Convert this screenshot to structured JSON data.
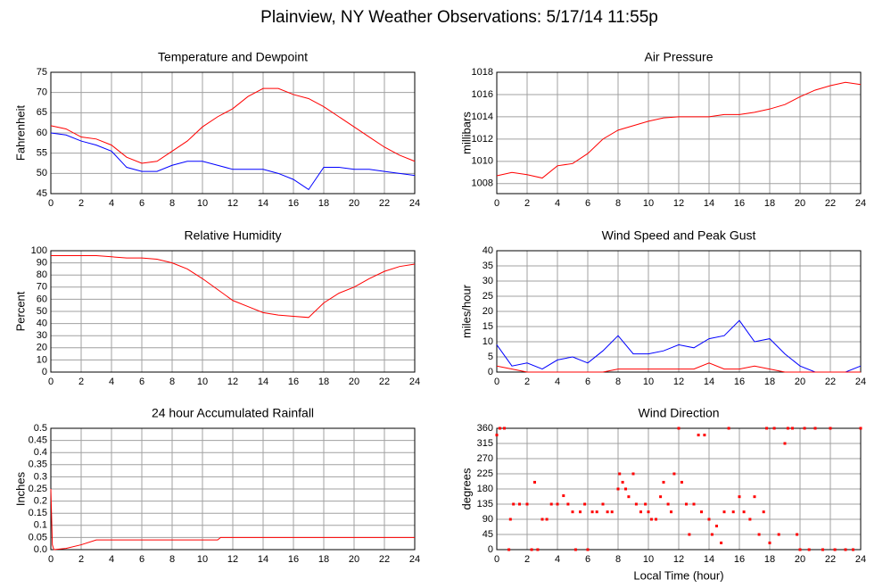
{
  "title": "Plainview, NY Weather Observations: 5/17/14 11:55p",
  "chart_data": [
    {
      "type": "line",
      "title": "Temperature and Dewpoint",
      "ylabel": "Fahrenheit",
      "x": [
        0,
        1,
        2,
        3,
        4,
        5,
        6,
        7,
        8,
        9,
        10,
        11,
        12,
        13,
        14,
        15,
        16,
        17,
        18,
        19,
        20,
        21,
        22,
        23,
        24
      ],
      "series": [
        {
          "color": "#ff0000",
          "values": [
            61.8,
            61,
            59,
            58.5,
            57,
            54,
            52.5,
            53,
            55.5,
            58,
            61.5,
            64,
            66,
            69,
            71,
            71,
            69.5,
            68.5,
            66.5,
            64,
            61.5,
            59,
            56.5,
            54.5,
            53
          ]
        },
        {
          "color": "#0000ff",
          "values": [
            60,
            59.5,
            58,
            57,
            55.5,
            51.5,
            50.5,
            50.5,
            52,
            53,
            53,
            52,
            51,
            51,
            51,
            50,
            48.5,
            46,
            51.5,
            51.5,
            51,
            51,
            50.5,
            50,
            49.5
          ]
        }
      ],
      "xlim": [
        0,
        24
      ],
      "xticks": [
        0,
        2,
        4,
        6,
        8,
        10,
        12,
        14,
        16,
        18,
        20,
        22,
        24
      ],
      "ylim": [
        45,
        75
      ],
      "yticks": [
        45,
        50,
        55,
        60,
        65,
        70,
        75
      ],
      "grid": true
    },
    {
      "type": "line",
      "title": "Air Pressure",
      "ylabel": "millibars",
      "x": [
        0,
        1,
        2,
        3,
        4,
        5,
        6,
        7,
        8,
        9,
        10,
        11,
        12,
        13,
        14,
        15,
        16,
        17,
        18,
        19,
        20,
        21,
        22,
        23,
        24
      ],
      "series": [
        {
          "color": "#ff0000",
          "values": [
            1008.7,
            1009,
            1008.8,
            1008.5,
            1009.6,
            1009.8,
            1010.7,
            1012,
            1012.8,
            1013.2,
            1013.6,
            1013.9,
            1014,
            1014,
            1014,
            1014.2,
            1014.2,
            1014.4,
            1014.7,
            1015.1,
            1015.8,
            1016.4,
            1016.8,
            1017.1,
            1016.9
          ]
        }
      ],
      "xlim": [
        0,
        24
      ],
      "xticks": [
        0,
        2,
        4,
        6,
        8,
        10,
        12,
        14,
        16,
        18,
        20,
        22,
        24
      ],
      "ylim": [
        1007.1,
        1018
      ],
      "yticks": [
        1008,
        1010,
        1012,
        1014,
        1016,
        1018
      ],
      "grid": true
    },
    {
      "type": "line",
      "title": "Relative Humidity",
      "ylabel": "Percent",
      "x": [
        0,
        1,
        2,
        3,
        4,
        5,
        6,
        7,
        8,
        9,
        10,
        11,
        12,
        13,
        14,
        15,
        16,
        17,
        18,
        19,
        20,
        21,
        22,
        23,
        24
      ],
      "series": [
        {
          "color": "#ff0000",
          "values": [
            96,
            96,
            96,
            96,
            95,
            94,
            94,
            93,
            90,
            85,
            77,
            68,
            59,
            54,
            49,
            47,
            46,
            45,
            57,
            65,
            70,
            77,
            83,
            87,
            89
          ]
        }
      ],
      "xlim": [
        0,
        24
      ],
      "xticks": [
        0,
        2,
        4,
        6,
        8,
        10,
        12,
        14,
        16,
        18,
        20,
        22,
        24
      ],
      "ylim": [
        0,
        100
      ],
      "yticks": [
        0,
        10,
        20,
        30,
        40,
        50,
        60,
        70,
        80,
        90,
        100
      ],
      "grid": true
    },
    {
      "type": "line",
      "title": "Wind Speed and Peak Gust",
      "ylabel": "miles/hour",
      "x": [
        0,
        1,
        2,
        3,
        4,
        5,
        6,
        7,
        8,
        9,
        10,
        11,
        12,
        13,
        14,
        15,
        16,
        17,
        18,
        19,
        20,
        21,
        22,
        23,
        24
      ],
      "series": [
        {
          "color": "#0000ff",
          "values": [
            9,
            2,
            3,
            1,
            4,
            5,
            3,
            7,
            12,
            6,
            6,
            7,
            9,
            8,
            11,
            12,
            17,
            10,
            11,
            6,
            2,
            0,
            0,
            0,
            2
          ]
        },
        {
          "color": "#ff0000",
          "values": [
            2,
            1,
            0,
            0,
            0,
            0,
            0,
            0,
            1,
            1,
            1,
            1,
            1,
            1,
            3,
            1,
            1,
            2,
            1,
            0,
            0,
            0,
            0,
            0,
            0
          ]
        }
      ],
      "xlim": [
        0,
        24
      ],
      "xticks": [
        0,
        2,
        4,
        6,
        8,
        10,
        12,
        14,
        16,
        18,
        20,
        22,
        24
      ],
      "ylim": [
        0,
        40
      ],
      "yticks": [
        0,
        5,
        10,
        15,
        20,
        25,
        30,
        35,
        40
      ],
      "grid": true
    },
    {
      "type": "line",
      "title": "24 hour Accumulated Rainfall",
      "ylabel": "Inches",
      "x": [
        0,
        0.1,
        0.2,
        1,
        2,
        3,
        11,
        11.2,
        24
      ],
      "series": [
        {
          "color": "#ff0000",
          "values": [
            0.25,
            0.02,
            0,
            0.005,
            0.02,
            0.04,
            0.04,
            0.05,
            0.05
          ]
        }
      ],
      "xlim": [
        0,
        24
      ],
      "xticks": [
        0,
        2,
        4,
        6,
        8,
        10,
        12,
        14,
        16,
        18,
        20,
        22,
        24
      ],
      "ylim": [
        0,
        0.5
      ],
      "yticks": [
        {
          "value": 0,
          "label": "0.0"
        },
        0.05,
        0.1,
        0.15,
        0.2,
        0.25,
        0.3,
        0.35,
        0.4,
        0.45,
        0.5
      ],
      "grid": true
    },
    {
      "type": "scatter",
      "title": "Wind Direction",
      "ylabel": "degrees",
      "xlabel": "Local Time (hour)",
      "x": [
        0,
        0.2,
        0.5,
        0.8,
        0.9,
        1.1,
        1.5,
        2,
        2.3,
        2.5,
        2.7,
        3,
        3.3,
        3.6,
        4,
        4.4,
        4.7,
        5,
        5.2,
        5.5,
        5.8,
        6,
        6.3,
        6.6,
        7,
        7.3,
        7.6,
        8,
        8.1,
        8.3,
        8.5,
        8.7,
        9,
        9.2,
        9.5,
        9.8,
        10,
        10.2,
        10.5,
        10.8,
        11,
        11.3,
        11.5,
        11.7,
        12,
        12.2,
        12.5,
        12.7,
        13,
        13.3,
        13.5,
        13.7,
        14,
        14.2,
        14.5,
        14.8,
        15,
        15.3,
        15.6,
        16,
        16.3,
        16.7,
        17,
        17.3,
        17.6,
        17.8,
        18,
        18.3,
        18.6,
        19,
        19.2,
        19.5,
        19.8,
        20,
        20.3,
        20.6,
        21,
        21.5,
        22,
        22.3,
        23,
        23.5,
        24
      ],
      "values": [
        340,
        360,
        360,
        0,
        90,
        135,
        135,
        135,
        0,
        200,
        0,
        90,
        90,
        135,
        135,
        160,
        135,
        112,
        0,
        112,
        135,
        0,
        112,
        112,
        135,
        112,
        112,
        180,
        225,
        200,
        180,
        157,
        225,
        135,
        112,
        135,
        112,
        90,
        90,
        157,
        200,
        135,
        112,
        225,
        360,
        200,
        135,
        45,
        135,
        340,
        112,
        340,
        90,
        45,
        70,
        20,
        112,
        360,
        112,
        157,
        112,
        90,
        157,
        45,
        112,
        360,
        20,
        360,
        45,
        315,
        360,
        360,
        45,
        0,
        360,
        0,
        360,
        0,
        360,
        0,
        0,
        0,
        360
      ],
      "color": "#ff0000",
      "xlim": [
        0,
        24
      ],
      "xticks": [
        0,
        2,
        4,
        6,
        8,
        10,
        12,
        14,
        16,
        18,
        20,
        22,
        24
      ],
      "ylim": [
        0,
        360
      ],
      "yticks": [
        0,
        45,
        90,
        135,
        180,
        225,
        270,
        315,
        360
      ],
      "grid": true
    }
  ]
}
